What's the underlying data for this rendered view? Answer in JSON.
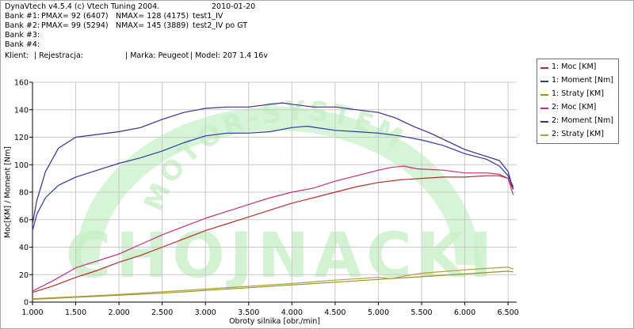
{
  "header": {
    "app_title": "DynaVtech v4.5.4 (c) Vtech Tuning 2004.",
    "date": "2010-01-20",
    "bank1": {
      "label": "Bank #1:",
      "pmax": "PMAX= 92 (6407)",
      "nmax": "NMAX= 128 (4175)",
      "name": "test1_IV"
    },
    "bank2": {
      "label": "Bank #2:",
      "pmax": "PMAX= 99 (5294)",
      "nmax": "NMAX= 145 (3889)",
      "name": "test2_IV po GT"
    },
    "bank3": {
      "label": "Bank #3:"
    },
    "bank4": {
      "label": "Bank #4:"
    },
    "client": {
      "label": "Klient:",
      "registration": "| Rejestracja:",
      "brand": "| Marka: Peugeot",
      "model": "| Model: 207 1.4 16v"
    }
  },
  "watermark": {
    "text": "CHOJNACKI",
    "arc_text": "MOTOR-SYSTEM",
    "color": "#c8f0c8"
  },
  "colors": {
    "moc1": "#b0302c",
    "moment1": "#2c3aa0",
    "straty1": "#8c9a20",
    "moc2": "#c0307a",
    "moment2": "#3a2c8c",
    "straty2": "#b89a40",
    "axis": "#000000"
  },
  "chart_data": {
    "type": "line",
    "xlabel": "Obroty silnika [obr./min]",
    "ylabel": "Moc[KM] / Moment [Nm]",
    "xlim": [
      1000,
      6600
    ],
    "ylim": [
      0,
      160
    ],
    "xticks": [
      "1.000",
      "1.500",
      "2.000",
      "2.500",
      "3.000",
      "3.500",
      "4.000",
      "4.500",
      "5.000",
      "5.500",
      "6.000",
      "6.500"
    ],
    "xtick_values": [
      1000,
      1500,
      2000,
      2500,
      3000,
      3500,
      4000,
      4500,
      5000,
      5500,
      6000,
      6500
    ],
    "yticks": [
      "0",
      "20",
      "40",
      "60",
      "80",
      "100",
      "120",
      "140",
      "160"
    ],
    "ytick_values": [
      0,
      20,
      40,
      60,
      80,
      100,
      120,
      140,
      160
    ],
    "legend_position": "right",
    "series": [
      {
        "name": "1: Moc [KM]",
        "color_key": "moc1",
        "x": [
          1000,
          1250,
          1500,
          1750,
          2000,
          2250,
          2500,
          2750,
          3000,
          3250,
          3500,
          3750,
          4000,
          4250,
          4500,
          4750,
          5000,
          5250,
          5500,
          5750,
          6000,
          6250,
          6400,
          6500,
          6560
        ],
        "y": [
          7,
          12,
          18,
          23,
          29,
          34,
          40,
          46,
          52,
          57,
          62,
          67,
          72,
          76,
          80,
          84,
          87,
          89,
          90,
          91,
          91,
          92,
          92,
          90,
          82
        ]
      },
      {
        "name": "1: Moment [Nm]",
        "color_key": "moment1",
        "x": [
          1000,
          1050,
          1150,
          1300,
          1500,
          1750,
          2000,
          2250,
          2500,
          2750,
          3000,
          3250,
          3500,
          3750,
          4000,
          4175,
          4500,
          4750,
          5000,
          5250,
          5500,
          5750,
          6000,
          6250,
          6400,
          6500,
          6560
        ],
        "y": [
          52,
          64,
          76,
          85,
          91,
          96,
          101,
          105,
          110,
          116,
          121,
          123,
          123,
          124,
          127,
          128,
          125,
          124,
          123,
          121,
          118,
          114,
          108,
          104,
          99,
          92,
          84
        ]
      },
      {
        "name": "1: Straty [KM]",
        "color_key": "straty1",
        "x": [
          1000,
          1500,
          2000,
          2500,
          3000,
          3500,
          4000,
          4500,
          5000,
          5500,
          6000,
          6500,
          6560
        ],
        "y": [
          2,
          3.5,
          5,
          6.5,
          8.5,
          10.5,
          12.5,
          14.5,
          16.5,
          18.5,
          20.5,
          22.5,
          22
        ]
      },
      {
        "name": "2: Moc [KM]",
        "color_key": "moc2",
        "x": [
          1000,
          1250,
          1500,
          1750,
          2000,
          2250,
          2500,
          2750,
          3000,
          3250,
          3500,
          3750,
          4000,
          4250,
          4500,
          4750,
          5000,
          5150,
          5294,
          5450,
          5750,
          6000,
          6250,
          6400,
          6500,
          6560
        ],
        "y": [
          8,
          16,
          25,
          30,
          35,
          42,
          49,
          55,
          61,
          66,
          71,
          76,
          80,
          83,
          88,
          92,
          96,
          98,
          99,
          97,
          96,
          94,
          94,
          93,
          90,
          78
        ]
      },
      {
        "name": "2: Moment [Nm]",
        "color_key": "moment2",
        "x": [
          1000,
          1050,
          1150,
          1300,
          1500,
          1750,
          2000,
          2250,
          2500,
          2750,
          3000,
          3250,
          3500,
          3750,
          3889,
          4000,
          4250,
          4500,
          4750,
          5000,
          5100,
          5200,
          5400,
          5600,
          5800,
          6000,
          6250,
          6400,
          6500,
          6560
        ],
        "y": [
          57,
          74,
          95,
          112,
          120,
          122,
          124,
          127,
          133,
          138,
          141,
          142,
          142,
          144,
          145,
          144,
          142,
          142,
          140,
          138,
          136,
          134,
          128,
          123,
          117,
          111,
          106,
          103,
          95,
          82
        ]
      },
      {
        "name": "2: Straty [KM]",
        "color_key": "straty2",
        "x": [
          1000,
          1500,
          2000,
          2500,
          3000,
          3500,
          4000,
          4500,
          5000,
          5150,
          5300,
          5500,
          6000,
          6500,
          6560
        ],
        "y": [
          2.5,
          4,
          5.5,
          7.5,
          9.5,
          11.5,
          13.5,
          16,
          18,
          17,
          19,
          21,
          23.5,
          25.5,
          24
        ]
      }
    ]
  }
}
